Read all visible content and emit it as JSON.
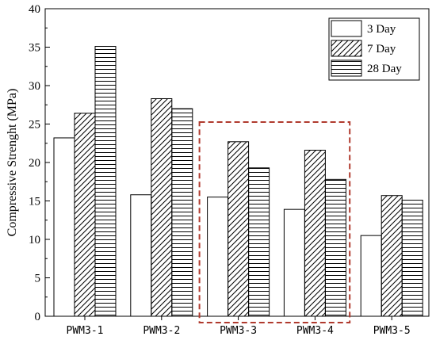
{
  "chart_data": {
    "type": "bar",
    "title": "",
    "xlabel": "",
    "ylabel": "Compressive Strenght (MPa)",
    "ylim": [
      0,
      40
    ],
    "yticks": [
      0,
      5,
      10,
      15,
      20,
      25,
      30,
      35,
      40
    ],
    "categories": [
      "PWM3-1",
      "PWM3-2",
      "PWM3-3",
      "PWM3-4",
      "PWM3-5"
    ],
    "series": [
      {
        "name": "3 Day",
        "values": [
          23.2,
          15.8,
          15.5,
          13.9,
          10.5
        ],
        "pattern": "none"
      },
      {
        "name": "7 Day",
        "values": [
          26.4,
          28.3,
          22.7,
          21.6,
          15.7
        ],
        "pattern": "diagonal"
      },
      {
        "name": "28 Day",
        "values": [
          35.1,
          27.0,
          19.3,
          17.8,
          15.1
        ],
        "pattern": "horizontal"
      }
    ],
    "legend_position": "top-right",
    "grid": false,
    "highlight": {
      "categories": [
        "PWM3-3",
        "PWM3-4"
      ],
      "color": "#b03a2e",
      "style": "dashed"
    }
  }
}
